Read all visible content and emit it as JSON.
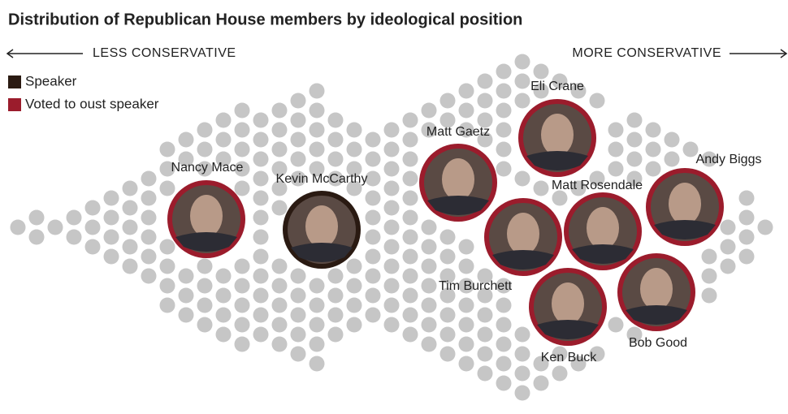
{
  "title": "Distribution of Republican House members by ideological position",
  "axis": {
    "left": "LESS CONSERVATIVE",
    "right": "MORE CONSERVATIVE"
  },
  "legend": [
    {
      "label": "Speaker",
      "color": "#2a1a12"
    },
    {
      "label": "Voted to oust speaker",
      "color": "#9b1c2c"
    }
  ],
  "members": [
    {
      "name": "Nancy Mace",
      "color": "#9b1c2c"
    },
    {
      "name": "Kevin McCarthy",
      "color": "#2a1a12"
    },
    {
      "name": "Matt Gaetz",
      "color": "#9b1c2c"
    },
    {
      "name": "Eli Crane",
      "color": "#9b1c2c"
    },
    {
      "name": "Tim Burchett",
      "color": "#9b1c2c"
    },
    {
      "name": "Matt Rosendale",
      "color": "#9b1c2c"
    },
    {
      "name": "Andy Biggs",
      "color": "#9b1c2c"
    },
    {
      "name": "Ken Buck",
      "color": "#9b1c2c"
    },
    {
      "name": "Bob Good",
      "color": "#9b1c2c"
    }
  ]
}
